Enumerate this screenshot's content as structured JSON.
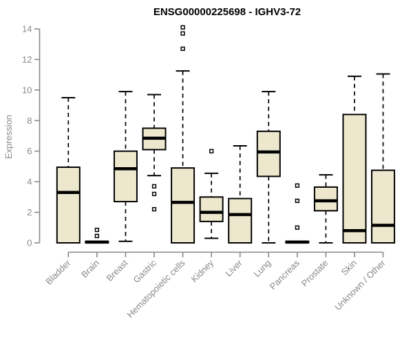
{
  "chart_data": {
    "type": "boxplot",
    "title": "ENSG00000225698 - IGHV3-72",
    "ylabel": "Expression",
    "xlabel": "",
    "ylim": [
      0,
      14
    ],
    "yticks": [
      0,
      2,
      4,
      6,
      8,
      10,
      12,
      14
    ],
    "grid": false,
    "legend_position": "none",
    "colors": {
      "box_fill": "#EDE8CD",
      "box_border": "#000000",
      "median": "#000000",
      "whisker": "#000000",
      "axis": "#888888",
      "tick_text": "#888888",
      "title_text": "#000000",
      "background": "#FFFFFF"
    },
    "categories": [
      "Bladder",
      "Brain",
      "Breast",
      "Gastric",
      "Hematopoietic cells",
      "Kidney",
      "Liver",
      "Lung",
      "Pancreas",
      "Prostate",
      "Skin",
      "Unknown / Other"
    ],
    "series": [
      {
        "category": "Bladder",
        "whisker_low": 0,
        "q1": 0,
        "median": 3.3,
        "q3": 4.95,
        "whisker_high": 9.5,
        "outliers": []
      },
      {
        "category": "Brain",
        "whisker_low": 0,
        "q1": 0,
        "median": 0.05,
        "q3": 0.1,
        "whisker_high": 0.1,
        "outliers": [
          0.85,
          0.45
        ]
      },
      {
        "category": "Breast",
        "whisker_low": 0.1,
        "q1": 2.7,
        "median": 4.85,
        "q3": 6.0,
        "whisker_high": 9.9,
        "outliers": []
      },
      {
        "category": "Gastric",
        "whisker_low": 4.4,
        "q1": 6.1,
        "median": 6.85,
        "q3": 7.5,
        "whisker_high": 9.7,
        "outliers": [
          3.7,
          3.2,
          2.2
        ]
      },
      {
        "category": "Hematopoietic cells",
        "whisker_low": 0,
        "q1": 0,
        "median": 2.65,
        "q3": 4.9,
        "whisker_high": 11.25,
        "outliers": [
          14.1,
          13.7,
          12.7
        ]
      },
      {
        "category": "Kidney",
        "whisker_low": 0.3,
        "q1": 1.4,
        "median": 2.0,
        "q3": 3.0,
        "whisker_high": 4.55,
        "outliers": [
          6.0
        ]
      },
      {
        "category": "Liver",
        "whisker_low": 0,
        "q1": 0,
        "median": 1.85,
        "q3": 2.9,
        "whisker_high": 6.35,
        "outliers": []
      },
      {
        "category": "Lung",
        "whisker_low": 0,
        "q1": 4.35,
        "median": 5.95,
        "q3": 7.3,
        "whisker_high": 9.9,
        "outliers": []
      },
      {
        "category": "Pancreas",
        "whisker_low": 0,
        "q1": 0,
        "median": 0.05,
        "q3": 0.1,
        "whisker_high": 0.1,
        "outliers": [
          3.75,
          2.75,
          1.0
        ]
      },
      {
        "category": "Prostate",
        "whisker_low": 0,
        "q1": 2.1,
        "median": 2.75,
        "q3": 3.65,
        "whisker_high": 4.45,
        "outliers": []
      },
      {
        "category": "Skin",
        "whisker_low": 0,
        "q1": 0,
        "median": 0.8,
        "q3": 8.4,
        "whisker_high": 10.9,
        "outliers": []
      },
      {
        "category": "Unknown / Other",
        "whisker_low": 0,
        "q1": 0,
        "median": 1.15,
        "q3": 4.75,
        "whisker_high": 11.05,
        "outliers": []
      }
    ]
  }
}
